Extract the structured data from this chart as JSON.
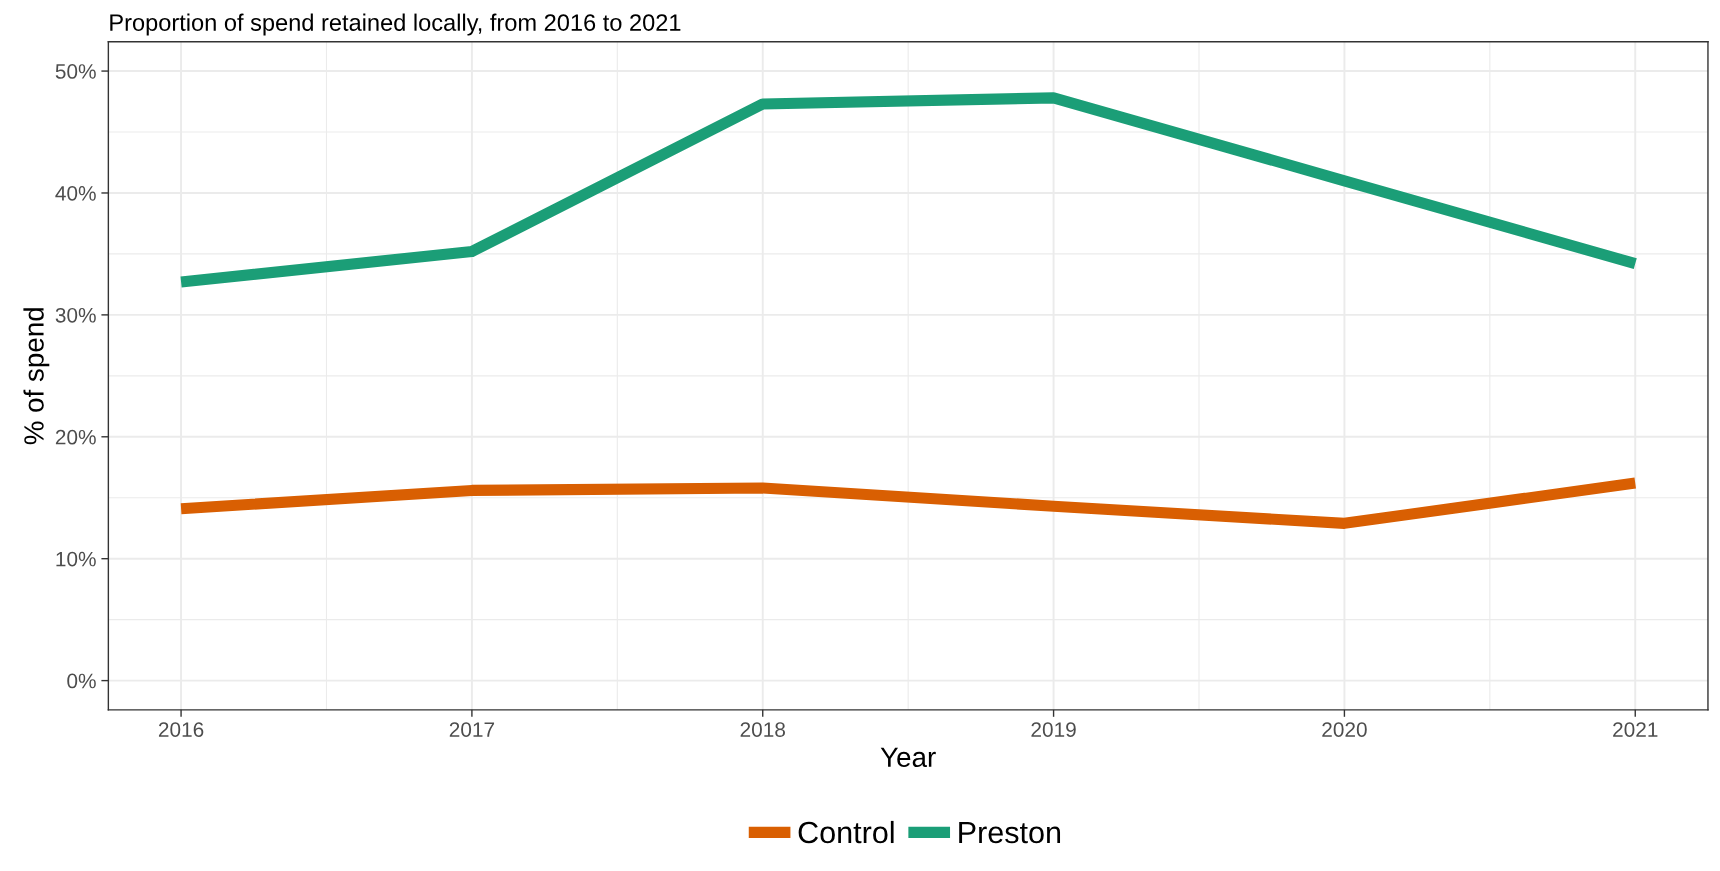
{
  "chart_data": {
    "type": "line",
    "title": "Proportion of spend retained locally, from 2016 to 2021",
    "xlabel": "Year",
    "ylabel": "% of spend",
    "x": [
      2016,
      2017,
      2018,
      2019,
      2020,
      2021
    ],
    "series": [
      {
        "name": "Control",
        "color": "#d95f02",
        "values": [
          14.1,
          15.6,
          15.8,
          14.3,
          12.9,
          16.2
        ]
      },
      {
        "name": "Preston",
        "color": "#1b9e77",
        "values": [
          32.7,
          35.2,
          47.3,
          47.8,
          41.0,
          34.2
        ]
      }
    ],
    "xlim": [
      2015.75,
      2021.25
    ],
    "xticks": [
      2016,
      2017,
      2018,
      2019,
      2020,
      2021
    ],
    "ylim": [
      -2.4,
      52.4
    ],
    "yticks": [
      {
        "value": 0,
        "label": "0%"
      },
      {
        "value": 10,
        "label": "10%"
      },
      {
        "value": 20,
        "label": "20%"
      },
      {
        "value": 30,
        "label": "30%"
      },
      {
        "value": 40,
        "label": "40%"
      },
      {
        "value": 50,
        "label": "50%"
      }
    ],
    "grid": true,
    "legend": "bottom",
    "line_style": "solid",
    "marker": "none"
  }
}
